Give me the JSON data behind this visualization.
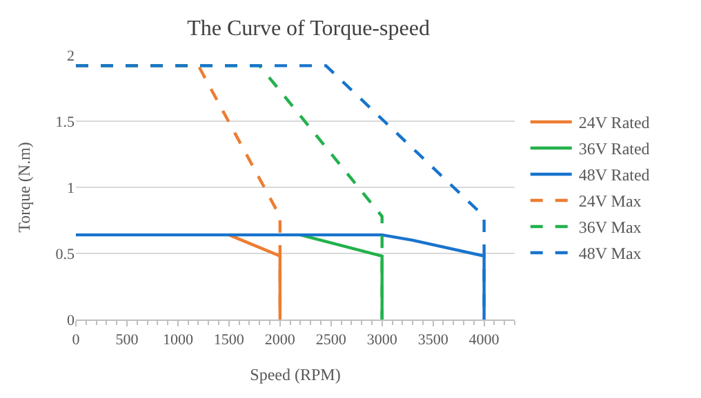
{
  "chart_data": {
    "type": "line",
    "title": "The Curve of Torque-speed",
    "xlabel": "Speed (RPM)",
    "ylabel": "Torque (N.m)",
    "xlim": [
      0,
      4300
    ],
    "xticks": [
      0,
      500,
      1000,
      1500,
      2000,
      2500,
      3000,
      3500,
      4000
    ],
    "ylim": [
      0,
      2
    ],
    "yticks": [
      0,
      0.5,
      1,
      1.5,
      2
    ],
    "grid": "y",
    "legend": "right",
    "marker": "none",
    "series": [
      {
        "name": "24V Rated",
        "color": "#ed7d31",
        "line_style": "solid",
        "x": [
          1500,
          2000,
          2000
        ],
        "values": [
          0.64,
          0.48,
          0
        ]
      },
      {
        "name": "36V Rated",
        "color": "#22b14c",
        "line_style": "solid",
        "x": [
          2200,
          3000,
          3000
        ],
        "values": [
          0.64,
          0.48,
          0
        ]
      },
      {
        "name": "48V Rated",
        "color": "#1874cd",
        "line_style": "solid",
        "x": [
          0,
          3000,
          3300,
          4000,
          4000
        ],
        "values": [
          0.64,
          0.64,
          0.6,
          0.48,
          0
        ]
      },
      {
        "name": "24V Max",
        "color": "#ed7d31",
        "line_style": "dashed",
        "x": [
          0,
          1200,
          2000,
          2000
        ],
        "values": [
          1.92,
          1.92,
          0.78,
          0
        ]
      },
      {
        "name": "36V Max",
        "color": "#22b14c",
        "line_style": "dashed",
        "x": [
          0,
          1800,
          3000,
          3000
        ],
        "values": [
          1.92,
          1.92,
          0.78,
          0
        ]
      },
      {
        "name": "48V Max",
        "color": "#1874cd",
        "line_style": "dashed",
        "x": [
          0,
          2450,
          4000,
          4000
        ],
        "values": [
          1.92,
          1.92,
          0.78,
          0
        ]
      }
    ]
  }
}
